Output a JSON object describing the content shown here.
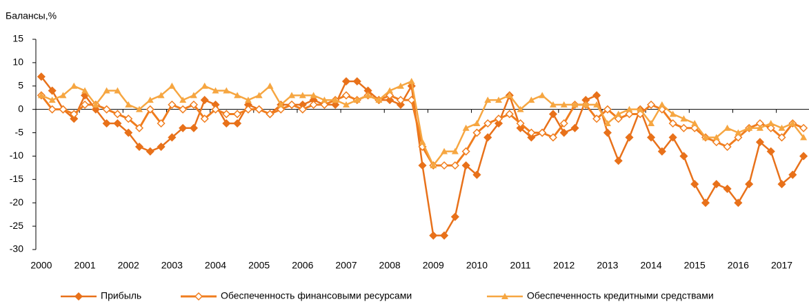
{
  "chart_data": {
    "type": "line",
    "y_label": "Балансы,%",
    "categories": [
      "2000",
      null,
      null,
      null,
      "2001",
      null,
      null,
      null,
      "2002",
      null,
      null,
      null,
      "2003",
      null,
      null,
      null,
      "2004",
      null,
      null,
      null,
      "2005",
      null,
      null,
      null,
      "2006",
      null,
      null,
      null,
      "2007",
      null,
      null,
      null,
      "2008",
      null,
      null,
      null,
      "2009",
      null,
      null,
      null,
      "2010",
      null,
      null,
      null,
      "2011",
      null,
      null,
      null,
      "2012",
      null,
      null,
      null,
      "2013",
      null,
      null,
      null,
      "2014",
      null,
      null,
      null,
      "2015",
      null,
      null,
      null,
      "2016",
      null,
      null,
      null,
      "2017",
      null,
      null
    ],
    "series": [
      {
        "name": "Прибыль",
        "color": "#e8711a",
        "marker": "diamond",
        "values": [
          7,
          4,
          0,
          -2,
          3,
          0,
          -3,
          -3,
          -5,
          -8,
          -9,
          -8,
          -6,
          -4,
          -4,
          2,
          1,
          -3,
          -3,
          1,
          0,
          -1,
          1,
          1,
          1,
          2,
          1,
          1,
          6,
          6,
          4,
          2,
          2,
          1,
          5,
          -12,
          -27,
          -27,
          -23,
          -12,
          -14,
          -6,
          -3,
          3,
          -4,
          -6,
          -5,
          -1,
          -5,
          -4,
          2,
          3,
          -5,
          -11,
          -6,
          0,
          -6,
          -9,
          -6,
          -10,
          -16,
          -20,
          -16,
          -17,
          -20,
          -16,
          -7,
          -9,
          -16,
          -14,
          -10
        ]
      },
      {
        "name": "Обеспеченность финансовыми ресурсами",
        "color": "#f07d1e",
        "marker": "hollow-diamond",
        "values": [
          3,
          0,
          0,
          -1,
          1,
          1,
          0,
          -1,
          -2,
          -4,
          0,
          -3,
          1,
          0,
          1,
          -2,
          0,
          -1,
          -1,
          0,
          0,
          -1,
          0,
          1,
          0,
          1,
          1,
          2,
          3,
          2,
          3,
          2,
          3,
          2,
          2,
          -8,
          -12,
          -12,
          -12,
          -9,
          -5,
          -3,
          -2,
          -1,
          -3,
          -5,
          -5,
          -6,
          -3,
          1,
          1,
          -2,
          0,
          -2,
          -1,
          -1,
          1,
          0,
          -3,
          -4,
          -4,
          -6,
          -7,
          -8,
          -6,
          -4,
          -3,
          -4,
          -6,
          -3,
          -4
        ]
      },
      {
        "name": "Обеспеченность кредитными средствами",
        "color": "#f6a641",
        "marker": "triangle",
        "values": [
          3,
          2,
          3,
          5,
          4,
          1,
          4,
          4,
          1,
          0,
          2,
          3,
          5,
          2,
          3,
          5,
          4,
          4,
          3,
          2,
          3,
          5,
          1,
          3,
          3,
          3,
          2,
          2,
          1,
          2,
          3,
          2,
          4,
          5,
          6,
          -7,
          -12,
          -9,
          -9,
          -4,
          -3,
          2,
          2,
          3,
          0,
          2,
          3,
          1,
          1,
          1,
          1,
          1,
          -3,
          -1,
          0,
          0,
          -3,
          1,
          -1,
          -2,
          -3,
          -6,
          -6,
          -4,
          -5,
          -4,
          -4,
          -3,
          -4,
          -3,
          -6
        ]
      }
    ],
    "ylim": [
      -30,
      15
    ],
    "yticks": [
      -30,
      -25,
      -20,
      -15,
      -10,
      -5,
      0,
      5,
      10,
      15
    ]
  }
}
